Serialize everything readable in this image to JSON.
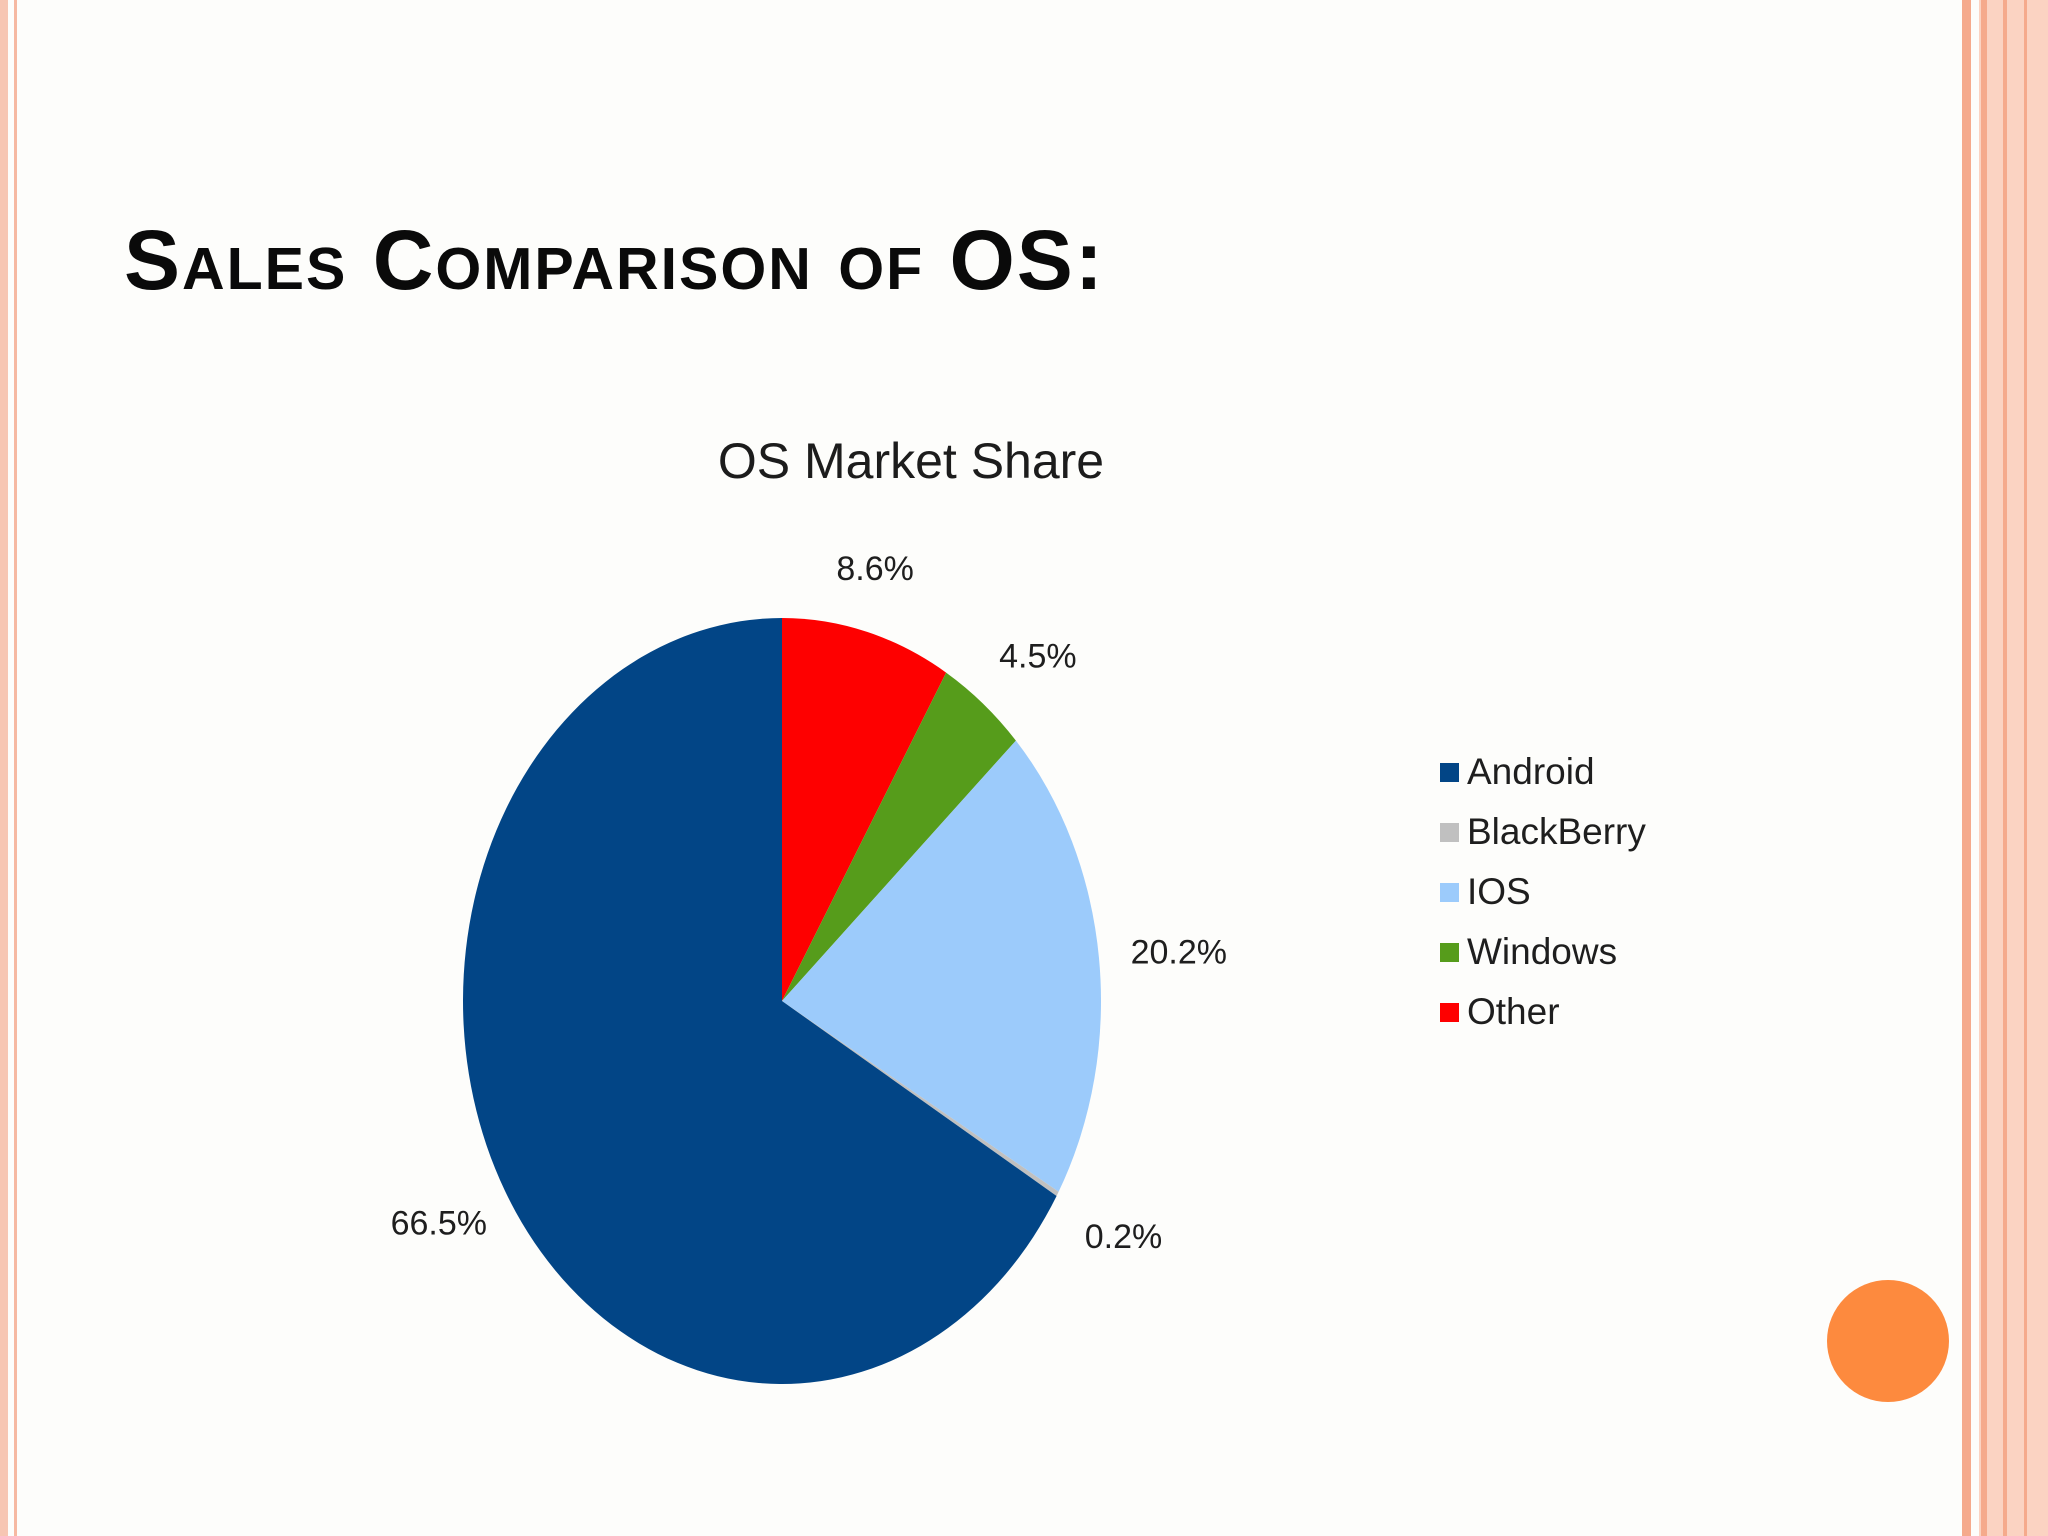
{
  "slide": {
    "title": "Sales Comparison of OS:"
  },
  "colors": {
    "frame": "#f5aa8c",
    "nav_dot": "#fd8a3e"
  },
  "chart_data": {
    "type": "pie",
    "title": "OS Market Share",
    "legend_position": "right",
    "start_angle_deg": 0,
    "direction": "clockwise",
    "order": [
      "Other",
      "Windows",
      "IOS",
      "BlackBerry",
      "Android"
    ],
    "slices": [
      {
        "name": "Android",
        "value": 66.5,
        "label": "66.5%",
        "color": "#024586"
      },
      {
        "name": "BlackBerry",
        "value": 0.2,
        "label": "0.2%",
        "color": "#c0c0c0"
      },
      {
        "name": "IOS",
        "value": 20.2,
        "label": "20.2%",
        "color": "#9ccbfb"
      },
      {
        "name": "Windows",
        "value": 4.5,
        "label": "4.5%",
        "color": "#569c1b"
      },
      {
        "name": "Other",
        "value": 8.6,
        "label": "8.6%",
        "color": "#fe0000"
      }
    ]
  }
}
